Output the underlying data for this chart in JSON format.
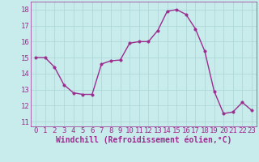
{
  "x": [
    0,
    1,
    2,
    3,
    4,
    5,
    6,
    7,
    8,
    9,
    10,
    11,
    12,
    13,
    14,
    15,
    16,
    17,
    18,
    19,
    20,
    21,
    22,
    23
  ],
  "y": [
    15.0,
    15.0,
    14.4,
    13.3,
    12.8,
    12.7,
    12.7,
    14.6,
    14.8,
    14.85,
    15.9,
    16.0,
    16.0,
    16.7,
    17.9,
    18.0,
    17.7,
    16.8,
    15.4,
    12.9,
    11.5,
    11.6,
    12.2,
    11.7
  ],
  "line_color": "#9b2d8e",
  "marker_color": "#9b2d8e",
  "bg_color": "#c8ecec",
  "grid_color": "#aad4d4",
  "xlabel": "Windchill (Refroidissement éolien,°C)",
  "xlabel_color": "#9b2d8e",
  "tick_color": "#9b2d8e",
  "spine_color": "#9b2d8e",
  "ylim": [
    10.7,
    18.5
  ],
  "xlim": [
    -0.5,
    23.5
  ],
  "yticks": [
    11,
    12,
    13,
    14,
    15,
    16,
    17,
    18
  ],
  "xticks": [
    0,
    1,
    2,
    3,
    4,
    5,
    6,
    7,
    8,
    9,
    10,
    11,
    12,
    13,
    14,
    15,
    16,
    17,
    18,
    19,
    20,
    21,
    22,
    23
  ],
  "marker_size": 2.5,
  "line_width": 1.0,
  "font_size": 6.5,
  "xlabel_fontsize": 7.0
}
